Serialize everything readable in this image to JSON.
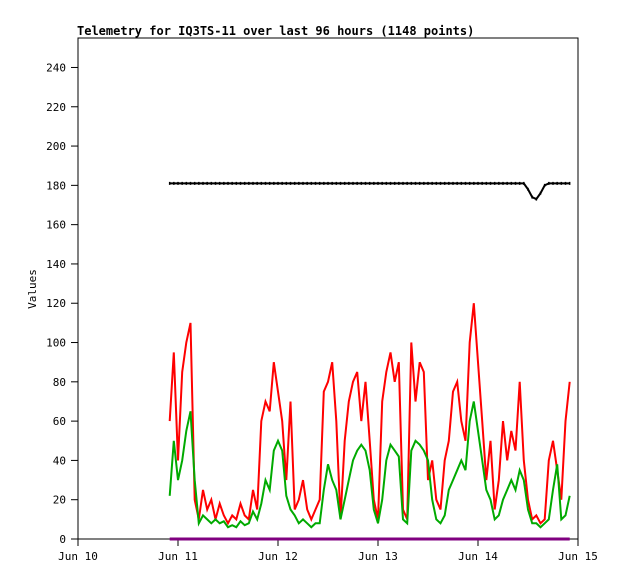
{
  "chart_data": {
    "type": "line",
    "title": "Telemetry for IQ3TS-11 over last 96 hours (1148 points)",
    "xlabel": "",
    "ylabel": "Values",
    "ylim": [
      0,
      255
    ],
    "yticks": [
      0,
      20,
      40,
      60,
      80,
      100,
      120,
      140,
      160,
      180,
      200,
      220,
      240
    ],
    "xticks": [
      "Jun 10",
      "Jun 11",
      "Jun 12",
      "Jun 13",
      "Jun 14",
      "Jun 15"
    ],
    "xlim": [
      "Jun 10 00:00",
      "Jun 15 00:00"
    ],
    "grid": false,
    "x": [
      "Jun 10 22:00",
      "Jun 10 23:00",
      "Jun 11 00:00",
      "Jun 11 01:00",
      "Jun 11 02:00",
      "Jun 11 03:00",
      "Jun 11 04:00",
      "Jun 11 05:00",
      "Jun 11 06:00",
      "Jun 11 07:00",
      "Jun 11 08:00",
      "Jun 11 09:00",
      "Jun 11 10:00",
      "Jun 11 11:00",
      "Jun 11 12:00",
      "Jun 11 13:00",
      "Jun 11 14:00",
      "Jun 11 15:00",
      "Jun 11 16:00",
      "Jun 11 17:00",
      "Jun 11 18:00",
      "Jun 11 19:00",
      "Jun 11 20:00",
      "Jun 11 21:00",
      "Jun 11 22:00",
      "Jun 11 23:00",
      "Jun 12 00:00",
      "Jun 12 01:00",
      "Jun 12 02:00",
      "Jun 12 03:00",
      "Jun 12 04:00",
      "Jun 12 05:00",
      "Jun 12 06:00",
      "Jun 12 07:00",
      "Jun 12 08:00",
      "Jun 12 09:00",
      "Jun 12 10:00",
      "Jun 12 11:00",
      "Jun 12 12:00",
      "Jun 12 13:00",
      "Jun 12 14:00",
      "Jun 12 15:00",
      "Jun 12 16:00",
      "Jun 12 17:00",
      "Jun 12 18:00",
      "Jun 12 19:00",
      "Jun 12 20:00",
      "Jun 12 21:00",
      "Jun 12 22:00",
      "Jun 12 23:00",
      "Jun 13 00:00",
      "Jun 13 01:00",
      "Jun 13 02:00",
      "Jun 13 03:00",
      "Jun 13 04:00",
      "Jun 13 05:00",
      "Jun 13 06:00",
      "Jun 13 07:00",
      "Jun 13 08:00",
      "Jun 13 09:00",
      "Jun 13 10:00",
      "Jun 13 11:00",
      "Jun 13 12:00",
      "Jun 13 13:00",
      "Jun 13 14:00",
      "Jun 13 15:00",
      "Jun 13 16:00",
      "Jun 13 17:00",
      "Jun 13 18:00",
      "Jun 13 19:00",
      "Jun 13 20:00",
      "Jun 13 21:00",
      "Jun 13 22:00",
      "Jun 13 23:00",
      "Jun 14 00:00",
      "Jun 14 01:00",
      "Jun 14 02:00",
      "Jun 14 03:00",
      "Jun 14 04:00",
      "Jun 14 05:00",
      "Jun 14 06:00",
      "Jun 14 07:00",
      "Jun 14 08:00",
      "Jun 14 09:00",
      "Jun 14 10:00",
      "Jun 14 11:00",
      "Jun 14 12:00",
      "Jun 14 13:00",
      "Jun 14 14:00",
      "Jun 14 15:00",
      "Jun 14 16:00",
      "Jun 14 17:00",
      "Jun 14 18:00",
      "Jun 14 19:00",
      "Jun 14 20:00",
      "Jun 14 21:00",
      "Jun 14 22:00"
    ],
    "series": [
      {
        "color": "#000000",
        "values": [
          181,
          181,
          181,
          181,
          181,
          181,
          181,
          181,
          181,
          181,
          181,
          181,
          181,
          181,
          181,
          181,
          181,
          181,
          181,
          181,
          181,
          181,
          181,
          181,
          181,
          181,
          181,
          181,
          181,
          181,
          181,
          181,
          181,
          181,
          181,
          181,
          181,
          181,
          181,
          181,
          181,
          181,
          181,
          181,
          181,
          181,
          181,
          181,
          181,
          181,
          181,
          181,
          181,
          181,
          181,
          181,
          181,
          181,
          181,
          181,
          181,
          181,
          181,
          181,
          181,
          181,
          181,
          181,
          181,
          181,
          181,
          181,
          181,
          181,
          181,
          181,
          181,
          181,
          181,
          181,
          181,
          181,
          181,
          181,
          181,
          181,
          178,
          174,
          173,
          176,
          180,
          181,
          181,
          181,
          181,
          181,
          181
        ]
      },
      {
        "color": "#ff0000",
        "values": [
          60,
          95,
          40,
          85,
          100,
          110,
          20,
          10,
          25,
          15,
          20,
          10,
          18,
          12,
          8,
          12,
          10,
          18,
          12,
          10,
          25,
          15,
          60,
          70,
          65,
          90,
          75,
          60,
          30,
          70,
          15,
          20,
          30,
          15,
          10,
          15,
          20,
          75,
          80,
          90,
          60,
          10,
          50,
          70,
          80,
          85,
          60,
          80,
          50,
          20,
          10,
          70,
          85,
          95,
          80,
          90,
          15,
          10,
          100,
          70,
          90,
          85,
          30,
          40,
          20,
          15,
          40,
          50,
          75,
          80,
          60,
          50,
          100,
          120,
          90,
          60,
          30,
          50,
          15,
          30,
          60,
          40,
          55,
          45,
          80,
          40,
          20,
          10,
          12,
          8,
          10,
          40,
          50,
          35,
          20,
          60,
          80
        ]
      },
      {
        "color": "#00aa00",
        "values": [
          22,
          50,
          30,
          40,
          55,
          65,
          30,
          8,
          12,
          10,
          8,
          10,
          8,
          9,
          6,
          7,
          6,
          9,
          7,
          8,
          14,
          10,
          18,
          30,
          25,
          45,
          50,
          45,
          22,
          15,
          12,
          8,
          10,
          8,
          6,
          8,
          8,
          25,
          38,
          30,
          25,
          10,
          20,
          30,
          40,
          45,
          48,
          45,
          35,
          15,
          8,
          20,
          40,
          48,
          45,
          42,
          10,
          8,
          45,
          50,
          48,
          45,
          40,
          20,
          10,
          8,
          12,
          25,
          30,
          35,
          40,
          35,
          60,
          70,
          55,
          40,
          25,
          20,
          10,
          12,
          20,
          25,
          30,
          25,
          35,
          30,
          15,
          8,
          8,
          6,
          8,
          10,
          25,
          38,
          10,
          12,
          22
        ]
      },
      {
        "color": "#800080",
        "values": [
          0,
          0,
          0,
          0,
          0,
          0,
          0,
          0,
          0,
          0,
          0,
          0,
          0,
          0,
          0,
          0,
          0,
          0,
          0,
          0,
          0,
          0,
          0,
          0,
          0,
          0,
          0,
          0,
          0,
          0,
          0,
          0,
          0,
          0,
          0,
          0,
          0,
          0,
          0,
          0,
          0,
          0,
          0,
          0,
          0,
          0,
          0,
          0,
          0,
          0,
          0,
          0,
          0,
          0,
          0,
          0,
          0,
          0,
          0,
          0,
          0,
          0,
          0,
          0,
          0,
          0,
          0,
          0,
          0,
          0,
          0,
          0,
          0,
          0,
          0,
          0,
          0,
          0,
          0,
          0,
          0,
          0,
          0,
          0,
          0,
          0,
          0,
          0,
          0,
          0,
          0,
          0,
          0,
          0,
          0,
          0,
          0
        ]
      }
    ]
  }
}
